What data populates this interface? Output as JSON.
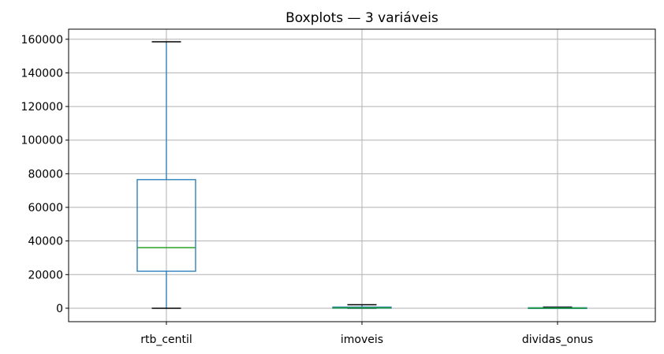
{
  "chart_data": {
    "type": "boxplot",
    "title": "Boxplots — 3 variáveis",
    "xlabel": "",
    "ylabel": "",
    "ylim": [
      -8000,
      166000
    ],
    "yticks": [
      0,
      20000,
      40000,
      60000,
      80000,
      100000,
      120000,
      140000,
      160000
    ],
    "ytick_labels": [
      "0",
      "20000",
      "40000",
      "60000",
      "80000",
      "100000",
      "120000",
      "140000",
      "160000"
    ],
    "grid": true,
    "categories": [
      "rtb_centil",
      "imoveis",
      "dividas_onus"
    ],
    "boxes": [
      {
        "category": "rtb_centil",
        "whisker_low": 0,
        "q1": 22000,
        "median": 36000,
        "q3": 76500,
        "whisker_high": 158500
      },
      {
        "category": "imoveis",
        "whisker_low": 0,
        "q1": 0,
        "median": 200,
        "q3": 700,
        "whisker_high": 2100
      },
      {
        "category": "dividas_onus",
        "whisker_low": 0,
        "q1": 0,
        "median": 100,
        "q3": 300,
        "whisker_high": 700
      }
    ],
    "colors": {
      "box": "#1f77b4",
      "median": "#2ca02c",
      "whisker_cap": "#000000",
      "grid": "#b0b0b0",
      "frame": "#000000"
    }
  }
}
